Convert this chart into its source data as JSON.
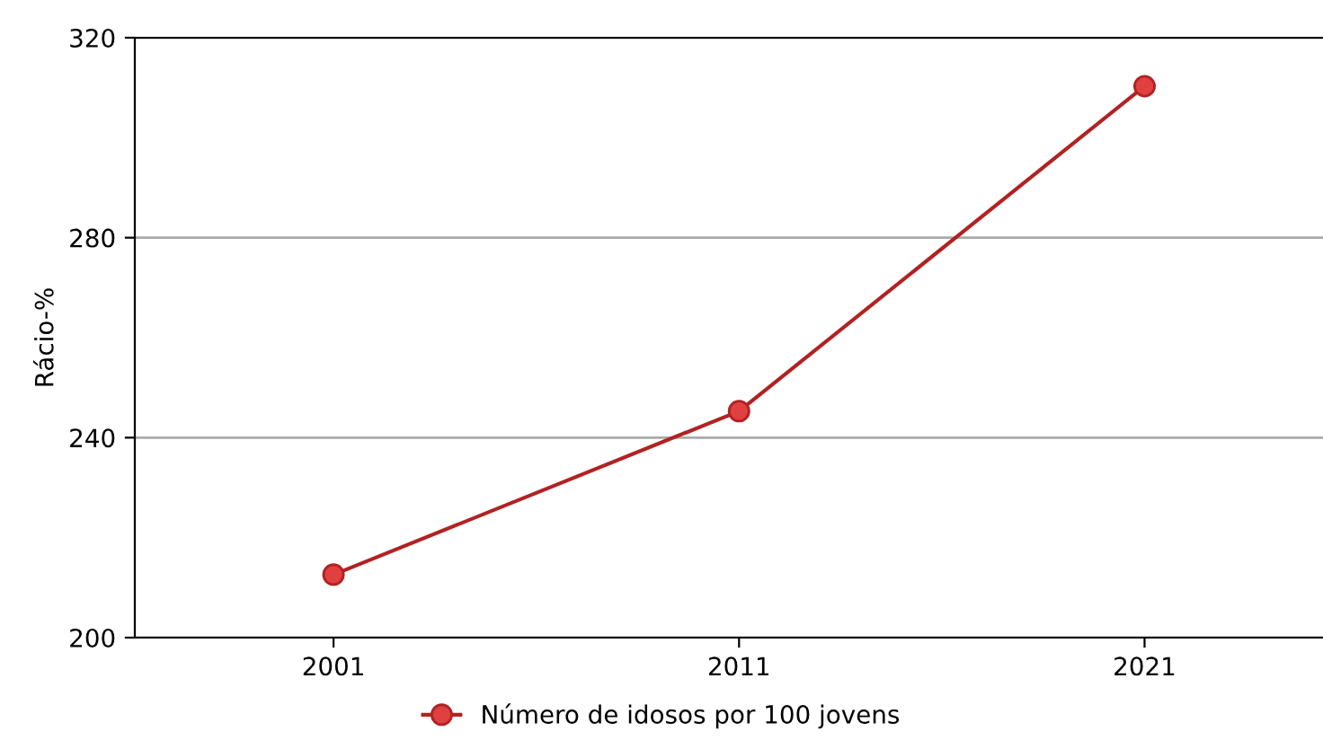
{
  "chart_data": {
    "type": "line",
    "ylabel": "Rácio-%",
    "categories": [
      "2001",
      "2011",
      "2021"
    ],
    "series": [
      {
        "name": "Número de idosos por 100 jovens",
        "color": "#b22222",
        "values": [
          212.6,
          245.3,
          310.3
        ]
      }
    ],
    "ylim": [
      200,
      320
    ],
    "yticks": [
      200,
      240,
      280,
      320
    ],
    "grid": "y",
    "legend": "bottom",
    "marker": "circle",
    "line_style": "solid"
  }
}
